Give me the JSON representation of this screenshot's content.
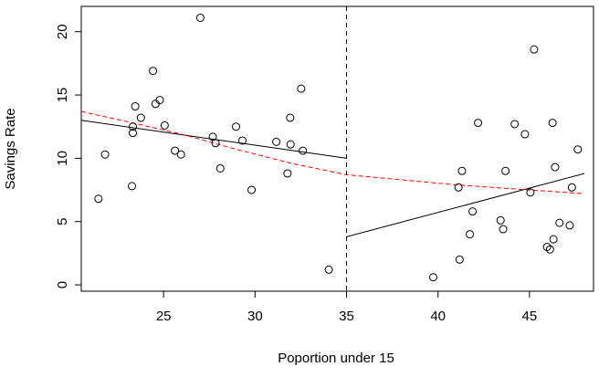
{
  "chart_data": {
    "type": "scatter",
    "xlabel": "Poportion under 15",
    "ylabel": "Savings Rate",
    "xlim": [
      20.5,
      48.5
    ],
    "ylim": [
      -0.5,
      22
    ],
    "xticks": [
      25,
      30,
      35,
      40,
      45
    ],
    "xtick_labels": [
      "25",
      "30",
      "35",
      "40",
      "45"
    ],
    "yticks": [
      0,
      5,
      10,
      15,
      20
    ],
    "ytick_labels": [
      "0",
      "5",
      "10",
      "15",
      "20"
    ],
    "grid": false,
    "cutoff": 35,
    "points": [
      {
        "x": 21.44,
        "y": 6.8
      },
      {
        "x": 21.8,
        "y": 10.3
      },
      {
        "x": 23.27,
        "y": 7.8
      },
      {
        "x": 23.32,
        "y": 12.5
      },
      {
        "x": 23.32,
        "y": 12.0
      },
      {
        "x": 23.45,
        "y": 14.1
      },
      {
        "x": 23.76,
        "y": 13.2
      },
      {
        "x": 24.42,
        "y": 16.9
      },
      {
        "x": 24.56,
        "y": 14.3
      },
      {
        "x": 24.79,
        "y": 14.6
      },
      {
        "x": 25.06,
        "y": 12.6
      },
      {
        "x": 25.62,
        "y": 10.6
      },
      {
        "x": 25.95,
        "y": 10.3
      },
      {
        "x": 27.01,
        "y": 21.1
      },
      {
        "x": 27.69,
        "y": 11.7
      },
      {
        "x": 27.84,
        "y": 11.2
      },
      {
        "x": 28.1,
        "y": 9.2
      },
      {
        "x": 28.96,
        "y": 12.5
      },
      {
        "x": 29.31,
        "y": 11.4
      },
      {
        "x": 29.81,
        "y": 7.5
      },
      {
        "x": 31.16,
        "y": 11.3
      },
      {
        "x": 31.77,
        "y": 8.8
      },
      {
        "x": 31.92,
        "y": 13.2
      },
      {
        "x": 31.94,
        "y": 11.1
      },
      {
        "x": 32.52,
        "y": 15.5
      },
      {
        "x": 32.61,
        "y": 10.6
      },
      {
        "x": 34.03,
        "y": 1.2
      },
      {
        "x": 39.74,
        "y": 0.6
      },
      {
        "x": 41.12,
        "y": 7.7
      },
      {
        "x": 41.18,
        "y": 2.0
      },
      {
        "x": 41.31,
        "y": 9.0
      },
      {
        "x": 41.74,
        "y": 4.0
      },
      {
        "x": 41.89,
        "y": 5.8
      },
      {
        "x": 42.19,
        "y": 12.8
      },
      {
        "x": 43.42,
        "y": 5.1
      },
      {
        "x": 43.56,
        "y": 4.4
      },
      {
        "x": 43.69,
        "y": 9.0
      },
      {
        "x": 44.19,
        "y": 12.7
      },
      {
        "x": 44.75,
        "y": 11.9
      },
      {
        "x": 45.05,
        "y": 7.3
      },
      {
        "x": 45.25,
        "y": 18.6
      },
      {
        "x": 45.96,
        "y": 3.0
      },
      {
        "x": 46.12,
        "y": 2.8
      },
      {
        "x": 46.26,
        "y": 12.8
      },
      {
        "x": 46.31,
        "y": 3.6
      },
      {
        "x": 46.4,
        "y": 9.3
      },
      {
        "x": 46.64,
        "y": 4.9
      },
      {
        "x": 47.2,
        "y": 4.7
      },
      {
        "x": 47.32,
        "y": 7.7
      },
      {
        "x": 47.64,
        "y": 10.7
      }
    ],
    "series": [
      {
        "style": "solid",
        "color": "#000000",
        "x": [
          20.5,
          35.0
        ],
        "y": [
          13.0,
          10.0
        ]
      },
      {
        "style": "solid",
        "color": "#000000",
        "x": [
          35.0,
          48.0
        ],
        "y": [
          3.8,
          8.8
        ]
      },
      {
        "style": "dashed",
        "color": "#ff0000",
        "x": [
          20.5,
          23.0,
          26.0,
          29.0,
          32.0,
          35.0,
          38.0,
          41.0,
          44.0,
          46.0,
          48.0
        ],
        "y": [
          13.7,
          12.9,
          11.9,
          10.7,
          9.6,
          8.7,
          8.3,
          7.9,
          7.6,
          7.4,
          7.2
        ]
      }
    ]
  }
}
